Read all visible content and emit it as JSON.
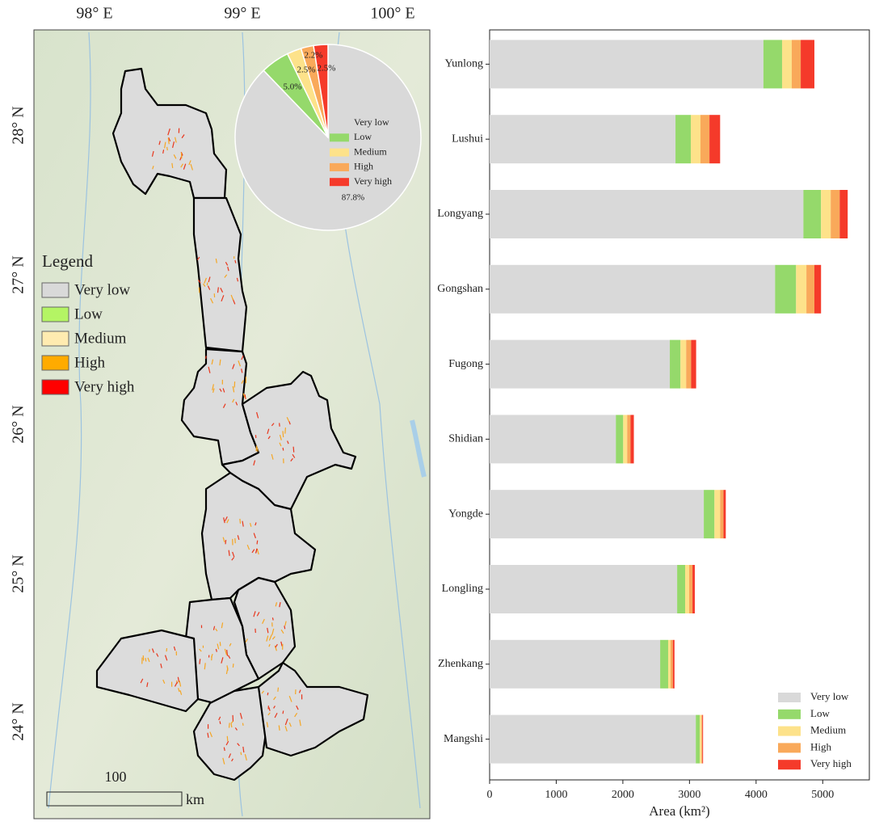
{
  "map": {
    "lon_labels": [
      "98° E",
      "99° E",
      "100° E"
    ],
    "lat_labels": [
      "28° N",
      "27° N",
      "26° N",
      "25° N",
      "24° N"
    ],
    "legend": {
      "title": "Legend",
      "items": [
        {
          "label": "Very low",
          "color": "#d9d9d9"
        },
        {
          "label": "Low",
          "color": "#b4f564"
        },
        {
          "label": "Medium",
          "color": "#ffebb0"
        },
        {
          "label": "High",
          "color": "#ffab00"
        },
        {
          "label": "Very high",
          "color": "#ff0000"
        }
      ]
    },
    "scale_label": "100",
    "scale_unit": "km"
  },
  "chart_data": [
    {
      "type": "pie",
      "categories": [
        "Very low",
        "Low",
        "Medium",
        "High",
        "Very high"
      ],
      "values": [
        87.8,
        5.0,
        2.5,
        2.2,
        2.5
      ],
      "value_labels": [
        "87.8%",
        "5.0%",
        "2.5%",
        "2.2%",
        "2.5%"
      ],
      "colors": [
        "#d9d9d9",
        "#95d96b",
        "#fde28a",
        "#f9a95a",
        "#f53a2a"
      ]
    },
    {
      "type": "hbar_stacked",
      "xlabel": "Area (km²)",
      "categories": [
        "Yunlong",
        "Lushui",
        "Longyang",
        "Gongshan",
        "Fugong",
        "Shidian",
        "Yongde",
        "Longling",
        "Zhenkang",
        "Mangshi"
      ],
      "series": [
        {
          "name": "Very low",
          "color": "#d9d9d9",
          "values": [
            4110,
            2790,
            4710,
            4285,
            2705,
            1895,
            3215,
            2815,
            2560,
            3095
          ]
        },
        {
          "name": "Low",
          "color": "#95d96b",
          "values": [
            280,
            230,
            265,
            315,
            160,
            110,
            160,
            120,
            120,
            60
          ]
        },
        {
          "name": "Medium",
          "color": "#fde28a",
          "values": [
            145,
            145,
            145,
            155,
            85,
            60,
            85,
            60,
            35,
            25
          ]
        },
        {
          "name": "High",
          "color": "#f9a95a",
          "values": [
            135,
            135,
            135,
            120,
            75,
            50,
            50,
            50,
            35,
            12
          ]
        },
        {
          "name": "Very high",
          "color": "#f53a2a",
          "values": [
            205,
            160,
            120,
            100,
            75,
            50,
            35,
            35,
            25,
            12
          ]
        }
      ],
      "xlim": [
        0,
        5700
      ],
      "xticks": [
        0,
        1000,
        2000,
        3000,
        4000,
        5000
      ],
      "legend": "lower right"
    }
  ]
}
